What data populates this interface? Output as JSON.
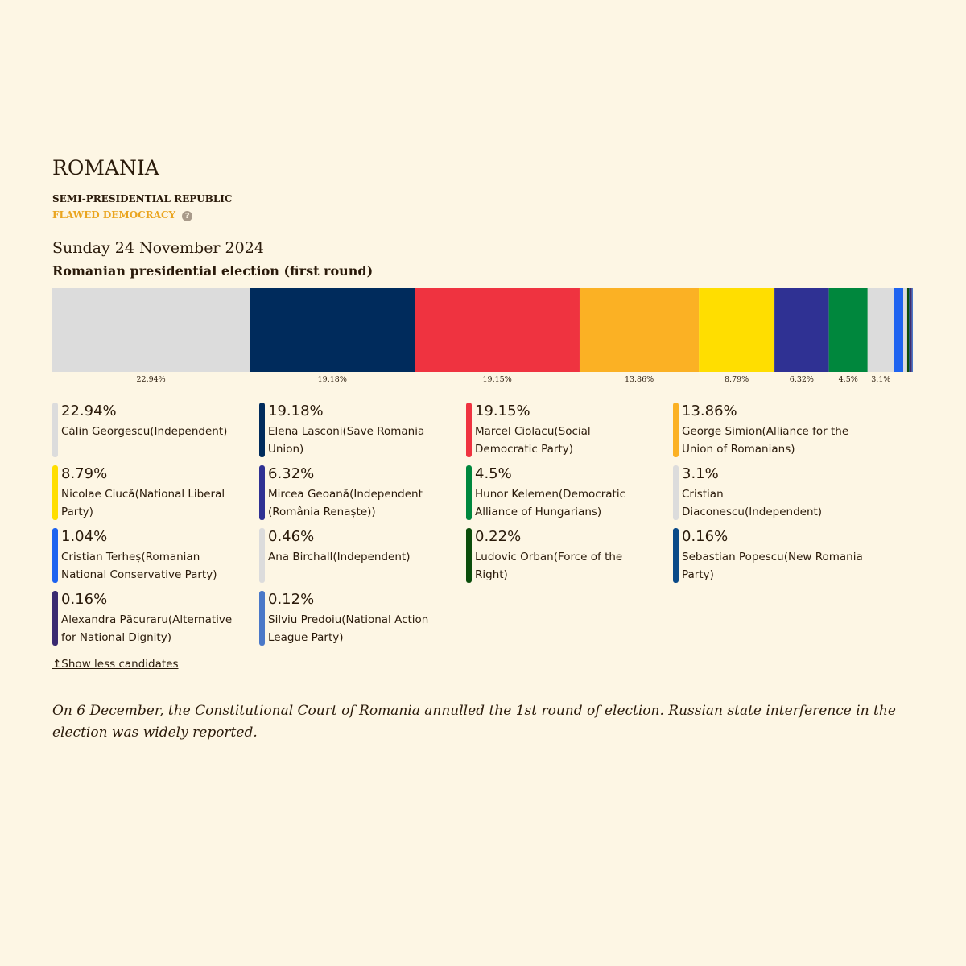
{
  "header": {
    "title": "ROMANIA",
    "system": "SEMI-PRESIDENTIAL REPUBLIC",
    "democracy": "FLAWED DEMOCRACY",
    "help": "?"
  },
  "date": "Sunday 24 November 2024",
  "chart_data": {
    "type": "stacked_bar",
    "title": "Romanian presidential election (first round)",
    "xlim": [
      0,
      100
    ],
    "categories": [
      "Călin Georgescu(Independent)",
      "Elena Lasconi(Save Romania Union)",
      "Marcel Ciolacu(Social Democratic Party)",
      "George Simion(Alliance for the Union of Romanians)",
      "Nicolae Ciucă(National Liberal Party)",
      "Mircea Geoană(Independent (România Renaște))",
      "Hunor Kelemen(Democratic Alliance of Hungarians)",
      "Cristian Diaconescu(Independent)",
      "Cristian Terheș(Romanian National Conservative Party)",
      "Ana Birchall(Independent)",
      "Ludovic Orban(Force of the Right)",
      "Sebastian Popescu(New Romania Party)",
      "Alexandra Păcuraru(Alternative for National Dignity)",
      "Silviu Predoiu(National Action League Party)"
    ],
    "values": [
      22.94,
      19.18,
      19.15,
      13.86,
      8.79,
      6.32,
      4.5,
      3.1,
      1.04,
      0.46,
      0.22,
      0.16,
      0.16,
      0.12
    ],
    "value_labels": [
      "22.94%",
      "19.18%",
      "19.15%",
      "13.86%",
      "8.79%",
      "6.32%",
      "4.5%",
      "3.1%",
      "1.04%",
      "0.46%",
      "0.22%",
      "0.16%",
      "0.16%",
      "0.12%"
    ],
    "colors": [
      "#dcdcdc",
      "#002b5c",
      "#ef3340",
      "#fbb124",
      "#ffde00",
      "#2f3193",
      "#00873d",
      "#dcdcdc",
      "#1e63f0",
      "#dcdcdc",
      "#0b4d0b",
      "#0a4a88",
      "#3a2a70",
      "#4a78c8"
    ]
  },
  "toggle": "↥Show less candidates",
  "note": "On 6 December, the Constitutional Court of Romania annulled the 1st round of election. Russian state interference in the election was widely reported."
}
